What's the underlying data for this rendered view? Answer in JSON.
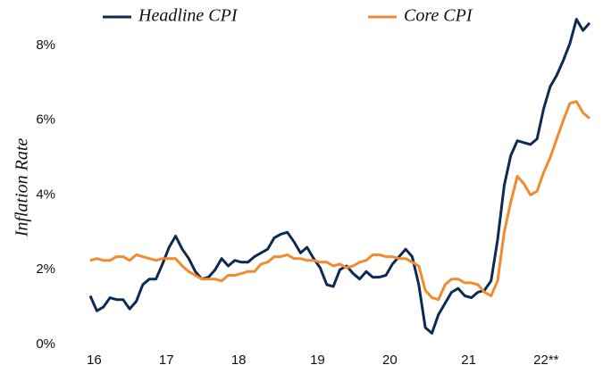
{
  "chart_data": {
    "type": "line",
    "y_label": "Inflation Rate",
    "categories": [
      "16",
      null,
      null,
      null,
      null,
      null,
      null,
      null,
      null,
      null,
      null,
      "17",
      null,
      null,
      null,
      null,
      null,
      null,
      null,
      null,
      null,
      null,
      "18",
      null,
      null,
      null,
      null,
      null,
      null,
      null,
      null,
      null,
      null,
      null,
      "19",
      null,
      null,
      null,
      null,
      null,
      null,
      null,
      null,
      null,
      null,
      "20",
      null,
      null,
      null,
      null,
      null,
      null,
      null,
      null,
      null,
      null,
      null,
      "21",
      null,
      null,
      null,
      null,
      null,
      null,
      null,
      null,
      null,
      null,
      "22**",
      null,
      null,
      null,
      null,
      null,
      null,
      null,
      null
    ],
    "series": [
      {
        "name": "Headline CPI",
        "color": "#0d2b52",
        "values": [
          1.3,
          0.9,
          1.0,
          1.25,
          1.2,
          1.2,
          0.95,
          1.15,
          1.6,
          1.75,
          1.75,
          2.15,
          2.6,
          2.9,
          2.55,
          2.3,
          1.95,
          1.75,
          1.8,
          2.0,
          2.3,
          2.1,
          2.25,
          2.2,
          2.2,
          2.35,
          2.45,
          2.55,
          2.85,
          2.95,
          3.0,
          2.75,
          2.45,
          2.6,
          2.3,
          2.05,
          1.6,
          1.55,
          2.0,
          2.1,
          1.9,
          1.75,
          1.95,
          1.8,
          1.8,
          1.85,
          2.15,
          2.35,
          2.55,
          2.35,
          1.6,
          0.45,
          0.3,
          0.8,
          1.1,
          1.4,
          1.5,
          1.3,
          1.25,
          1.4,
          1.45,
          1.7,
          2.8,
          4.25,
          5.05,
          5.45,
          5.4,
          5.35,
          5.5,
          6.3,
          6.9,
          7.2,
          7.6,
          8.05,
          8.7,
          8.4,
          8.6
        ]
      },
      {
        "name": "Core CPI",
        "color": "#f28a30",
        "values": [
          2.25,
          2.3,
          2.25,
          2.25,
          2.35,
          2.35,
          2.25,
          2.4,
          2.35,
          2.3,
          2.25,
          2.3,
          2.3,
          2.3,
          2.1,
          1.95,
          1.85,
          1.75,
          1.75,
          1.75,
          1.7,
          1.85,
          1.85,
          1.9,
          1.95,
          1.95,
          2.15,
          2.2,
          2.35,
          2.35,
          2.4,
          2.3,
          2.3,
          2.25,
          2.25,
          2.2,
          2.2,
          2.1,
          2.15,
          2.05,
          2.1,
          2.2,
          2.25,
          2.4,
          2.4,
          2.35,
          2.35,
          2.3,
          2.3,
          2.2,
          2.1,
          1.45,
          1.25,
          1.2,
          1.6,
          1.75,
          1.75,
          1.65,
          1.65,
          1.6,
          1.4,
          1.3,
          1.7,
          3.0,
          3.8,
          4.5,
          4.3,
          4.0,
          4.1,
          4.6,
          5.0,
          5.5,
          6.0,
          6.45,
          6.5,
          6.2,
          6.05
        ]
      }
    ],
    "ylim": [
      0,
      9
    ],
    "yticks": [
      {
        "value": 0,
        "label": "0%"
      },
      {
        "value": 2,
        "label": "2%"
      },
      {
        "value": 4,
        "label": "4%"
      },
      {
        "value": 6,
        "label": "6%"
      },
      {
        "value": 8,
        "label": "8%"
      }
    ],
    "grid": false,
    "legend": "top"
  }
}
